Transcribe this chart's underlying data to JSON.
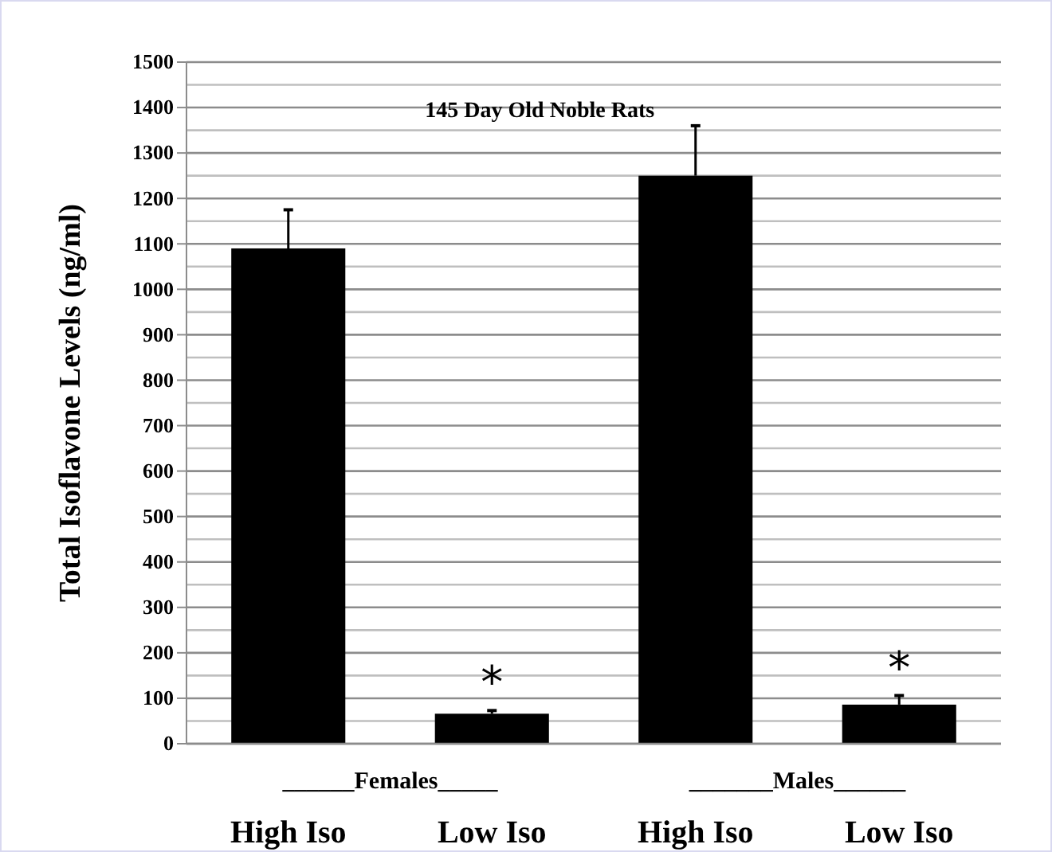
{
  "chart_data": {
    "type": "bar",
    "title": "145 Day Old Noble Rats",
    "ylabel": "Total Isoflavone Levels (ng/ml)",
    "categories": [
      "High Iso",
      "Low Iso",
      "High Iso",
      "Low Iso"
    ],
    "values": [
      1090,
      66,
      1250,
      86
    ],
    "errors": [
      85,
      7,
      110,
      20
    ],
    "color": "#000000",
    "ylim": [
      0,
      1500
    ],
    "yticks": [
      0,
      {
        "value": 50,
        "label": null
      },
      100,
      {
        "value": 150,
        "label": null
      },
      200,
      {
        "value": 250,
        "label": null
      },
      300,
      {
        "value": 350,
        "label": null
      },
      400,
      {
        "value": 450,
        "label": null
      },
      500,
      {
        "value": 550,
        "label": null
      },
      600,
      {
        "value": 650,
        "label": null
      },
      700,
      {
        "value": 750,
        "label": null
      },
      800,
      {
        "value": 850,
        "label": null
      },
      900,
      {
        "value": 950,
        "label": null
      },
      1000,
      {
        "value": 1050,
        "label": null
      },
      1100,
      {
        "value": 1150,
        "label": null
      },
      1200,
      {
        "value": 1250,
        "label": null
      },
      1300,
      {
        "value": 1350,
        "label": null
      },
      1400,
      {
        "value": 1450,
        "label": null
      },
      1500
    ],
    "grid": true,
    "annotations": [
      "*",
      "*",
      "______Females_____",
      "_______Males______"
    ]
  }
}
